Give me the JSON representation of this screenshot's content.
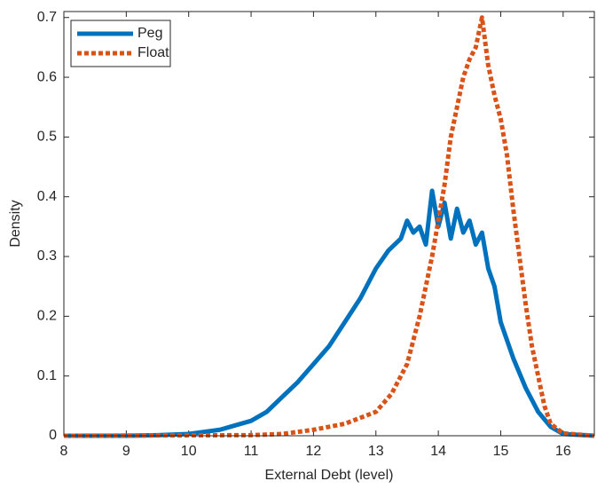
{
  "chart_data": {
    "type": "line",
    "x_label": "External Debt (level)",
    "y_label": "Density",
    "xlim": [
      8,
      16.5
    ],
    "ylim": [
      0,
      0.71
    ],
    "xticks": [
      8,
      9,
      10,
      11,
      12,
      13,
      14,
      15,
      16
    ],
    "yticks": [
      0,
      0.1,
      0.2,
      0.3,
      0.4,
      0.5,
      0.6,
      0.7
    ],
    "legend": "upper left",
    "grid": false,
    "series": [
      {
        "name": "Peg",
        "color": "#0072bd",
        "style": "solid",
        "x": [
          8,
          9,
          9.5,
          10,
          10.5,
          11,
          11.25,
          11.5,
          11.75,
          12,
          12.25,
          12.5,
          12.75,
          13,
          13.2,
          13.4,
          13.5,
          13.6,
          13.7,
          13.8,
          13.9,
          14.0,
          14.1,
          14.2,
          14.3,
          14.4,
          14.5,
          14.6,
          14.7,
          14.8,
          14.9,
          15.0,
          15.2,
          15.4,
          15.6,
          15.8,
          16,
          16.5
        ],
        "values": [
          0,
          0,
          0.001,
          0.003,
          0.01,
          0.025,
          0.04,
          0.065,
          0.09,
          0.12,
          0.15,
          0.19,
          0.23,
          0.28,
          0.31,
          0.33,
          0.36,
          0.34,
          0.35,
          0.32,
          0.41,
          0.35,
          0.39,
          0.33,
          0.38,
          0.34,
          0.36,
          0.32,
          0.34,
          0.28,
          0.25,
          0.19,
          0.13,
          0.08,
          0.04,
          0.015,
          0.003,
          0
        ]
      },
      {
        "name": "Float",
        "color": "#d95319",
        "style": "dotted",
        "x": [
          8,
          11,
          11.5,
          12,
          12.5,
          13,
          13.25,
          13.5,
          13.7,
          13.9,
          14.0,
          14.1,
          14.2,
          14.3,
          14.4,
          14.5,
          14.6,
          14.7,
          14.8,
          14.9,
          15.0,
          15.1,
          15.2,
          15.3,
          15.4,
          15.5,
          15.6,
          15.7,
          15.8,
          16.0,
          16.5
        ],
        "values": [
          0,
          0.001,
          0.003,
          0.01,
          0.02,
          0.04,
          0.07,
          0.12,
          0.2,
          0.3,
          0.36,
          0.42,
          0.5,
          0.55,
          0.6,
          0.63,
          0.65,
          0.7,
          0.62,
          0.57,
          0.53,
          0.47,
          0.38,
          0.3,
          0.22,
          0.15,
          0.1,
          0.05,
          0.02,
          0.004,
          0
        ]
      }
    ]
  }
}
